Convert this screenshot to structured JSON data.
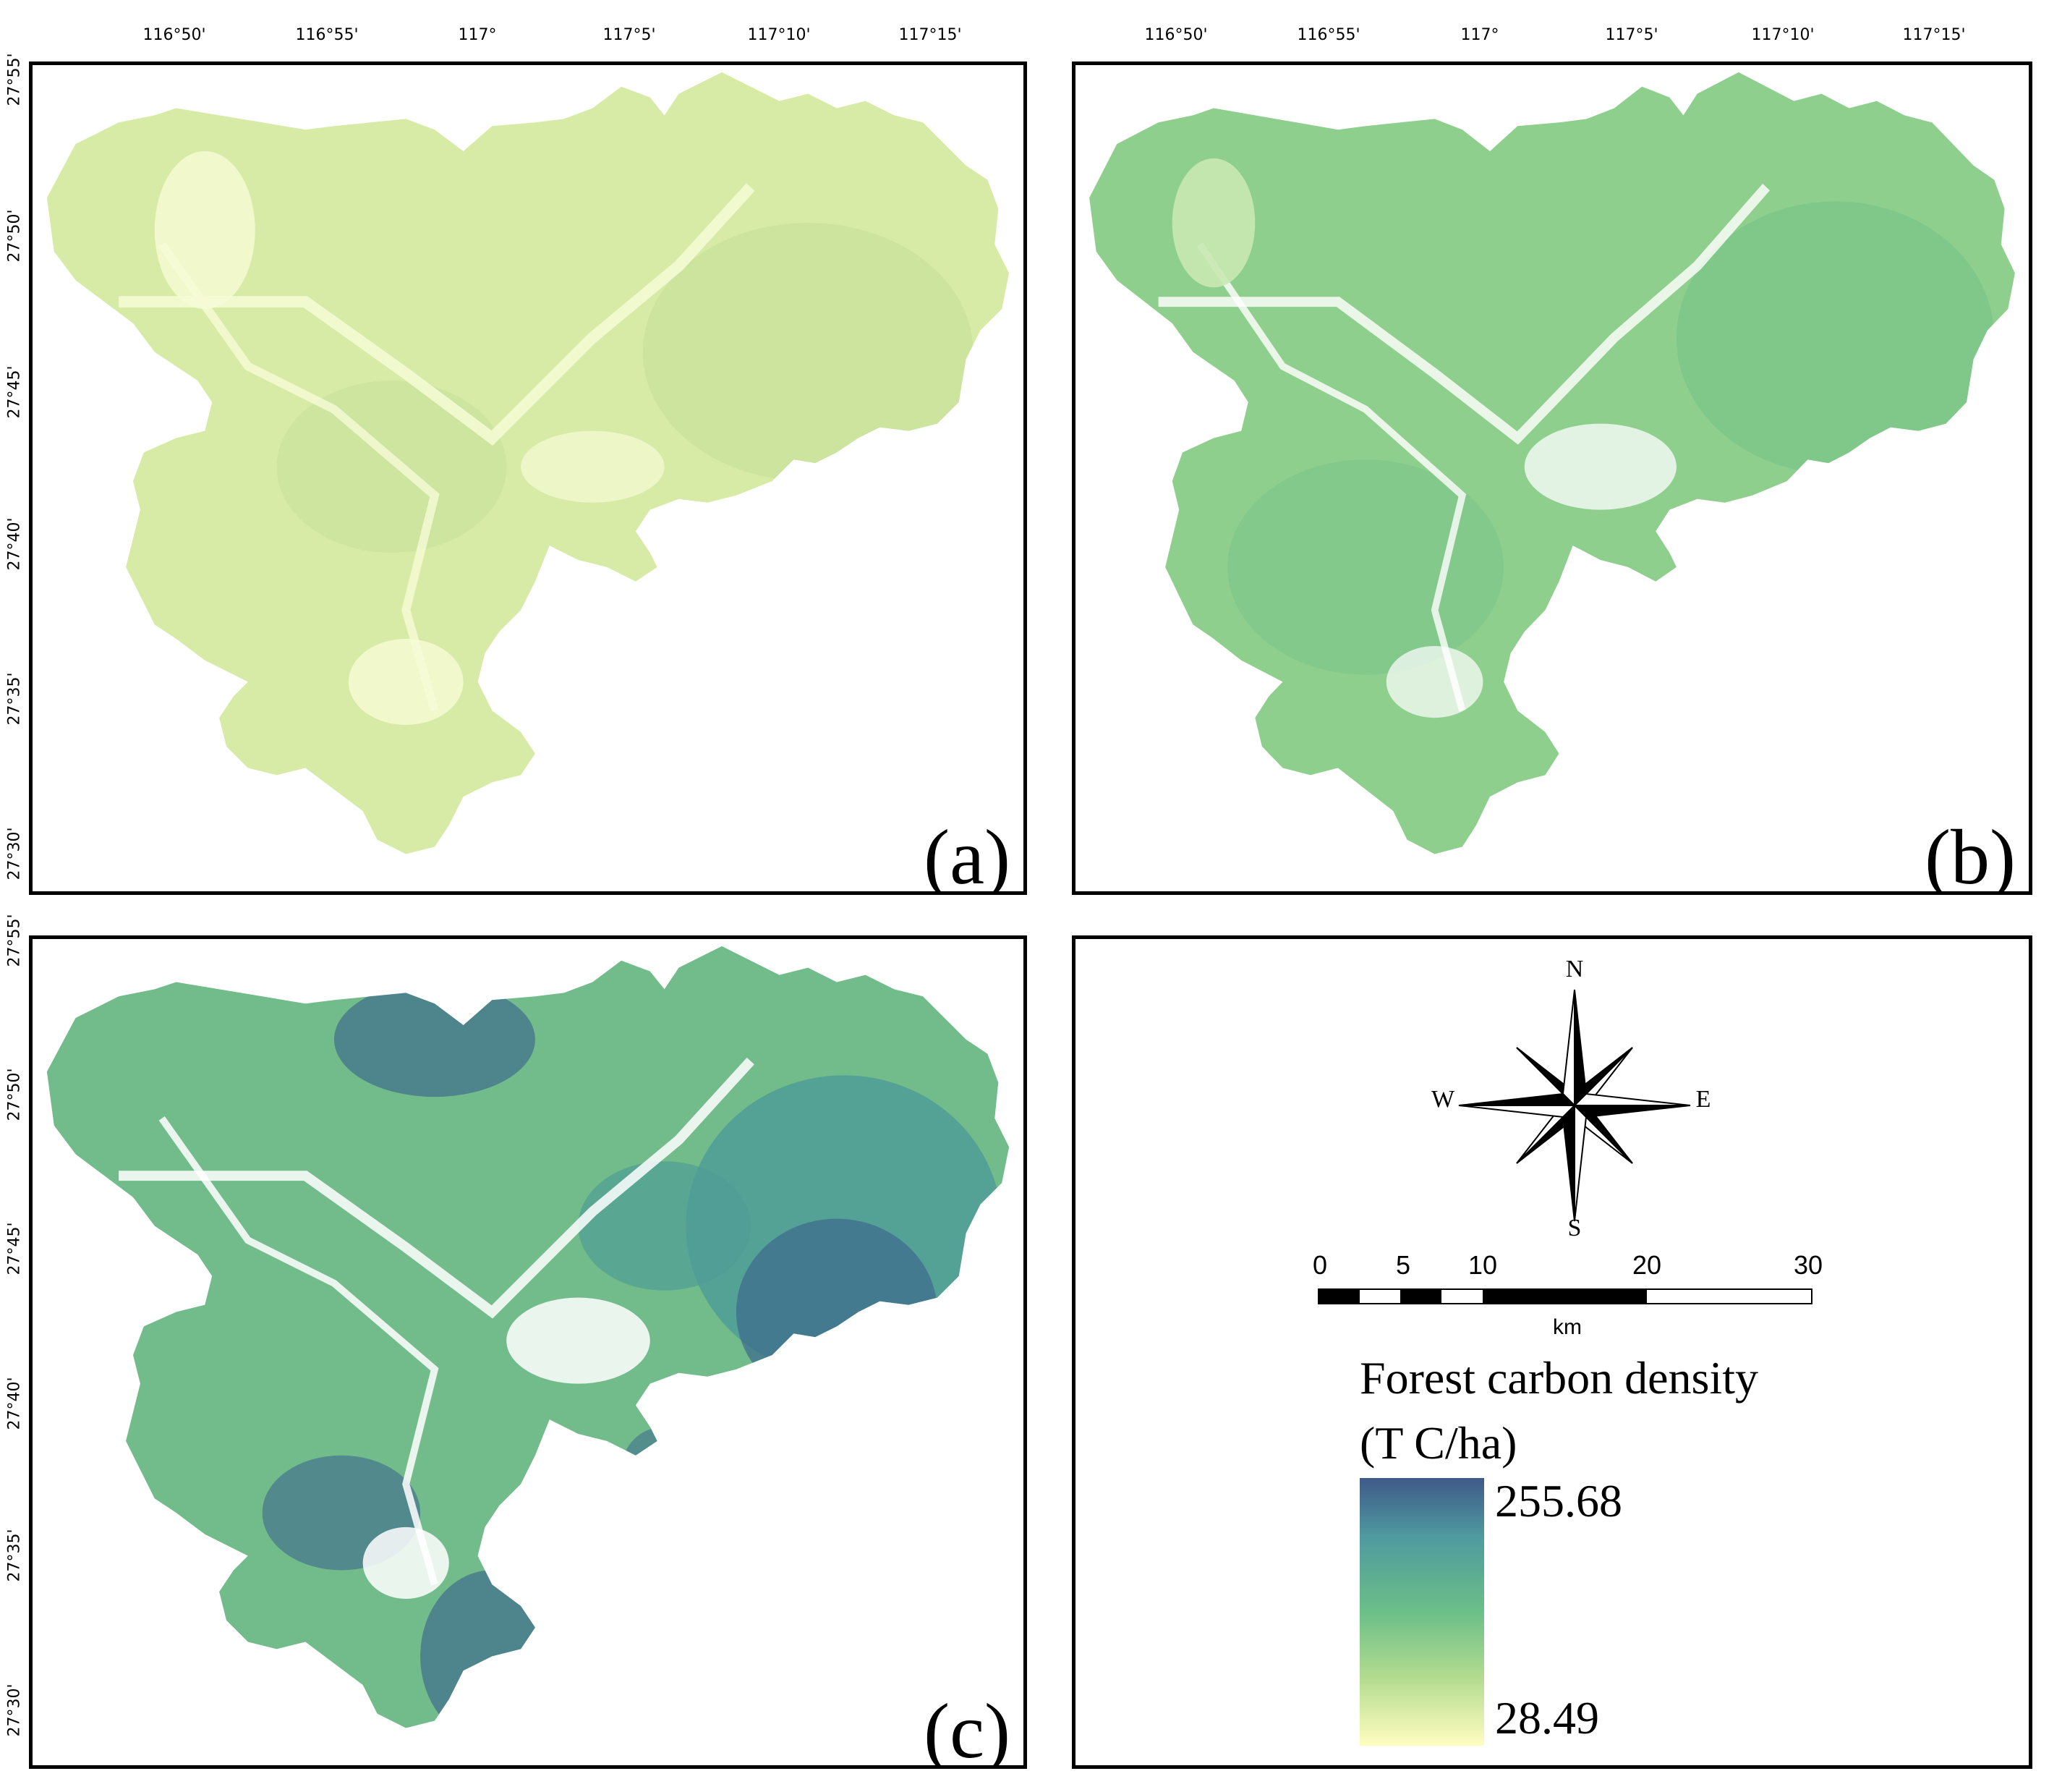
{
  "top_ticks": [
    "116°50'",
    "116°55'",
    "117°",
    "117°5'",
    "117°10'",
    "117°15'"
  ],
  "left_ticks": [
    "27°55'",
    "27°50'",
    "27°45'",
    "27°40'",
    "27°35'",
    "27°30'"
  ],
  "panels": {
    "a": {
      "label": "(a)",
      "colors": {
        "fill": "#d7eaa6",
        "shade": "#c4e09a",
        "light": "#f6fbd6"
      }
    },
    "b": {
      "label": "(b)",
      "colors": {
        "fill": "#8fcf8e",
        "shade": "#79c389",
        "light": "#c9e8b3"
      }
    },
    "c": {
      "label": "(c)",
      "colors": {
        "fill": "#72bb8a",
        "shade": "#4f9c96",
        "dark": "#3f6e8e"
      }
    }
  },
  "compass": {
    "n": "N",
    "s": "S",
    "e": "E",
    "w": "W"
  },
  "scale_bar": {
    "labels": [
      "0",
      "5",
      "10",
      "20",
      "30"
    ],
    "unit": "km"
  },
  "legend": {
    "title_line1": "Forest carbon density",
    "title_line2": "(T C/ha)",
    "max": "255.68",
    "min": "28.49",
    "colors": {
      "high": "#3f5a8a",
      "mid": "#6bbf88",
      "low": "#fffdc0"
    }
  }
}
